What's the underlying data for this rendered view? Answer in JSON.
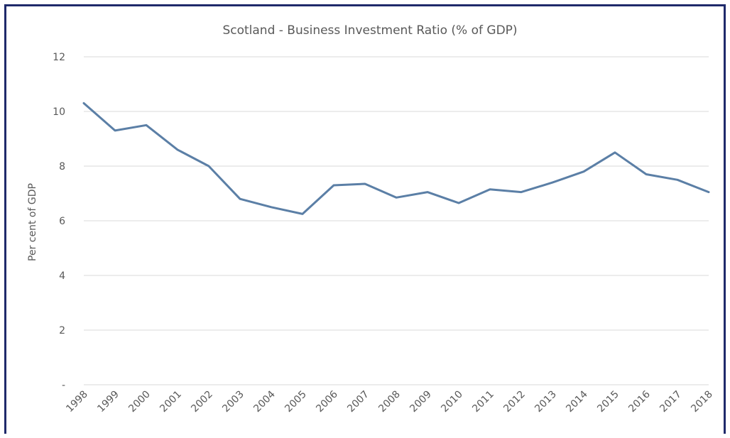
{
  "chart_data": {
    "type": "line",
    "title": "Scotland  - Business Investment Ratio (% of GDP)",
    "xlabel": "",
    "ylabel": "Per cent of GDP",
    "ylim": [
      0,
      12
    ],
    "ytick_labels": [
      "-",
      "2",
      "4",
      "6",
      "8",
      "10",
      "12"
    ],
    "grid": true,
    "categories": [
      "1998",
      "1999",
      "2000",
      "2001",
      "2002",
      "2003",
      "2004",
      "2005",
      "2006",
      "2007",
      "2008",
      "2009",
      "2010",
      "2011",
      "2012",
      "2013",
      "2014",
      "2015",
      "2016",
      "2017",
      "2018"
    ],
    "series": [
      {
        "values": [
          10.3,
          9.3,
          9.5,
          8.6,
          8.0,
          6.8,
          6.5,
          6.25,
          7.3,
          7.35,
          6.85,
          7.05,
          6.65,
          7.15,
          7.05,
          7.4,
          7.8,
          8.5,
          7.7,
          7.5,
          7.05
        ]
      }
    ],
    "colors": {
      "line": "#5b7fa6",
      "grid": "#d9d9d9",
      "border": "#1f2a6b"
    }
  }
}
